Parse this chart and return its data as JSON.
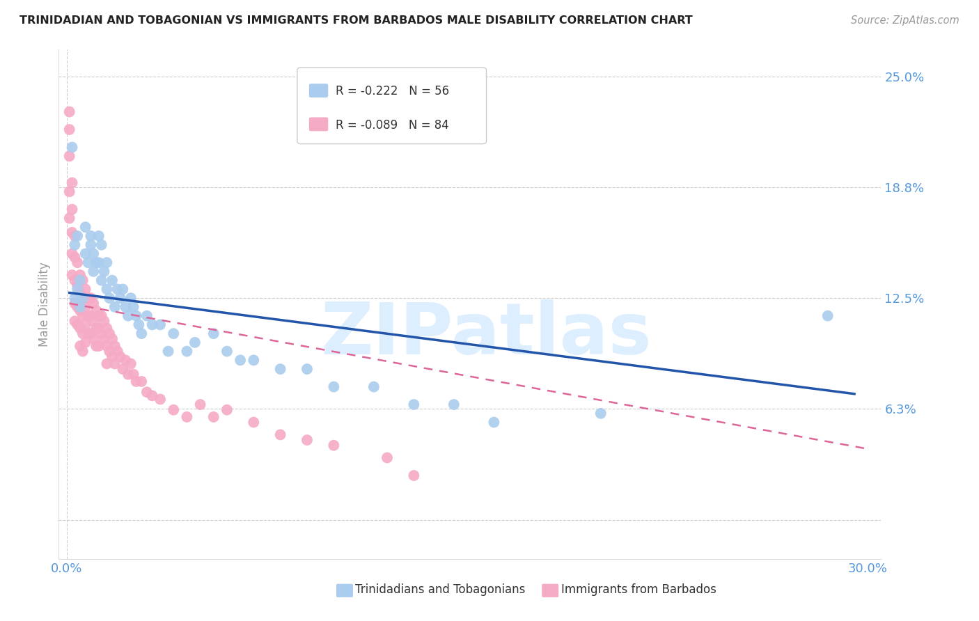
{
  "title": "TRINIDADIAN AND TOBAGONIAN VS IMMIGRANTS FROM BARBADOS MALE DISABILITY CORRELATION CHART",
  "source": "Source: ZipAtlas.com",
  "ylabel": "Male Disability",
  "yticks": [
    0.0,
    0.0625,
    0.125,
    0.1875,
    0.25
  ],
  "ytick_labels": [
    "",
    "6.3%",
    "12.5%",
    "18.8%",
    "25.0%"
  ],
  "xlim": [
    -0.003,
    0.305
  ],
  "ylim": [
    -0.022,
    0.265
  ],
  "series1_label": "Trinidadians and Tobagonians",
  "series1_R": "-0.222",
  "series1_N": "56",
  "series1_color": "#aaccee",
  "series1_edge_color": "#aaccee",
  "series1_line_color": "#2255aa",
  "series2_label": "Immigrants from Barbados",
  "series2_R": "-0.089",
  "series2_N": "84",
  "series2_color": "#f5aac5",
  "series2_edge_color": "#f5aac5",
  "series2_line_color": "#dd6699",
  "background_color": "#ffffff",
  "watermark": "ZIPatlas",
  "watermark_color": "#ddeeff",
  "grid_color": "#cccccc",
  "series1_x": [
    0.002,
    0.003,
    0.003,
    0.004,
    0.004,
    0.005,
    0.005,
    0.006,
    0.007,
    0.007,
    0.008,
    0.009,
    0.009,
    0.01,
    0.01,
    0.011,
    0.012,
    0.012,
    0.013,
    0.013,
    0.014,
    0.015,
    0.015,
    0.016,
    0.017,
    0.018,
    0.019,
    0.02,
    0.021,
    0.022,
    0.023,
    0.024,
    0.025,
    0.026,
    0.027,
    0.028,
    0.03,
    0.032,
    0.035,
    0.038,
    0.04,
    0.045,
    0.048,
    0.055,
    0.06,
    0.065,
    0.07,
    0.08,
    0.09,
    0.1,
    0.115,
    0.13,
    0.145,
    0.16,
    0.2,
    0.285
  ],
  "series1_y": [
    0.21,
    0.125,
    0.155,
    0.13,
    0.16,
    0.12,
    0.135,
    0.125,
    0.15,
    0.165,
    0.145,
    0.155,
    0.16,
    0.14,
    0.15,
    0.145,
    0.145,
    0.16,
    0.135,
    0.155,
    0.14,
    0.13,
    0.145,
    0.125,
    0.135,
    0.12,
    0.13,
    0.125,
    0.13,
    0.12,
    0.115,
    0.125,
    0.12,
    0.115,
    0.11,
    0.105,
    0.115,
    0.11,
    0.11,
    0.095,
    0.105,
    0.095,
    0.1,
    0.105,
    0.095,
    0.09,
    0.09,
    0.085,
    0.085,
    0.075,
    0.075,
    0.065,
    0.065,
    0.055,
    0.06,
    0.115
  ],
  "series2_x": [
    0.001,
    0.001,
    0.001,
    0.001,
    0.001,
    0.002,
    0.002,
    0.002,
    0.002,
    0.002,
    0.003,
    0.003,
    0.003,
    0.003,
    0.003,
    0.004,
    0.004,
    0.004,
    0.004,
    0.005,
    0.005,
    0.005,
    0.005,
    0.005,
    0.006,
    0.006,
    0.006,
    0.006,
    0.006,
    0.007,
    0.007,
    0.007,
    0.007,
    0.008,
    0.008,
    0.008,
    0.009,
    0.009,
    0.009,
    0.01,
    0.01,
    0.01,
    0.011,
    0.011,
    0.011,
    0.012,
    0.012,
    0.012,
    0.013,
    0.013,
    0.014,
    0.014,
    0.015,
    0.015,
    0.015,
    0.016,
    0.016,
    0.017,
    0.017,
    0.018,
    0.018,
    0.019,
    0.02,
    0.021,
    0.022,
    0.023,
    0.024,
    0.025,
    0.026,
    0.028,
    0.03,
    0.032,
    0.035,
    0.04,
    0.045,
    0.05,
    0.055,
    0.06,
    0.07,
    0.08,
    0.09,
    0.1,
    0.12,
    0.13
  ],
  "series2_y": [
    0.23,
    0.22,
    0.205,
    0.185,
    0.17,
    0.19,
    0.175,
    0.162,
    0.15,
    0.138,
    0.16,
    0.148,
    0.135,
    0.122,
    0.112,
    0.145,
    0.132,
    0.12,
    0.11,
    0.138,
    0.128,
    0.118,
    0.108,
    0.098,
    0.135,
    0.125,
    0.115,
    0.105,
    0.095,
    0.13,
    0.12,
    0.11,
    0.1,
    0.125,
    0.115,
    0.105,
    0.125,
    0.115,
    0.105,
    0.122,
    0.112,
    0.102,
    0.118,
    0.108,
    0.098,
    0.115,
    0.108,
    0.098,
    0.115,
    0.105,
    0.112,
    0.102,
    0.108,
    0.098,
    0.088,
    0.105,
    0.095,
    0.102,
    0.092,
    0.098,
    0.088,
    0.095,
    0.092,
    0.085,
    0.09,
    0.082,
    0.088,
    0.082,
    0.078,
    0.078,
    0.072,
    0.07,
    0.068,
    0.062,
    0.058,
    0.065,
    0.058,
    0.062,
    0.055,
    0.048,
    0.045,
    0.042,
    0.035,
    0.025
  ],
  "trend1_x_start": 0.001,
  "trend1_x_end": 0.295,
  "trend1_y_start": 0.128,
  "trend1_y_end": 0.071,
  "trend2_x_start": 0.001,
  "trend2_x_end": 0.3,
  "trend2_y_start": 0.122,
  "trend2_y_end": 0.04
}
